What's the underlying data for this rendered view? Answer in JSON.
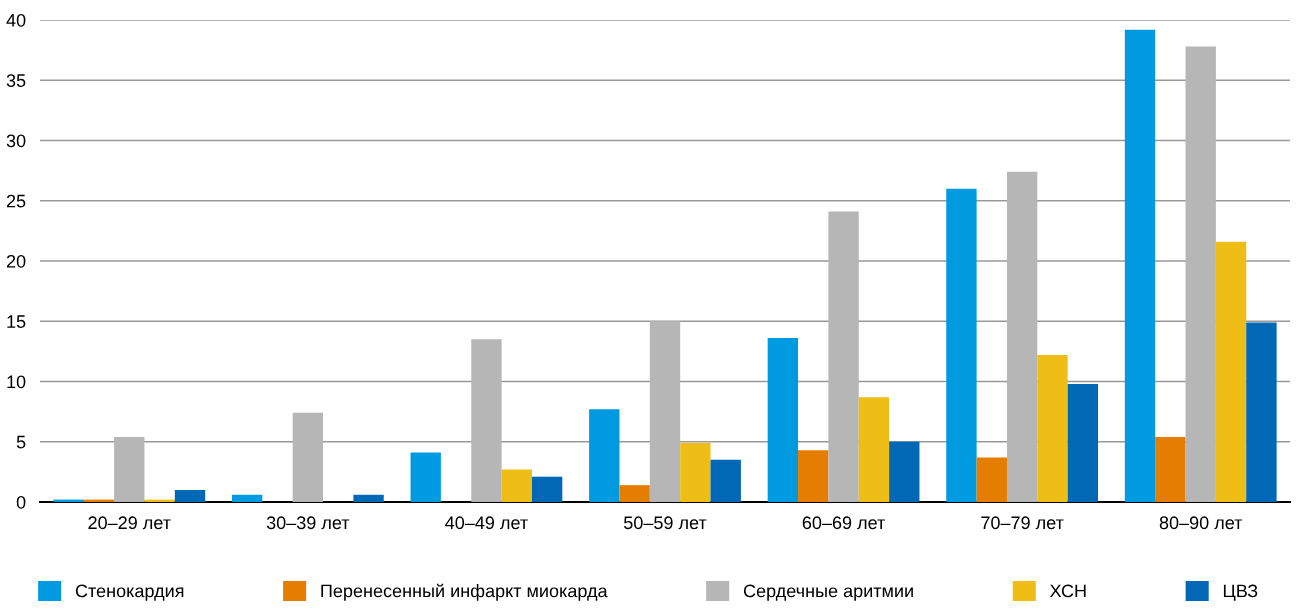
{
  "chart_data": {
    "type": "bar",
    "categories": [
      "20–29 лет",
      "30–39 лет",
      "40–49 лет",
      "50–59 лет",
      "60–69 лет",
      "70–79 лет",
      "80–90 лет"
    ],
    "series": [
      {
        "name": "Стенокардия",
        "color": "#009ae0",
        "values": [
          0.2,
          0.6,
          4.1,
          7.7,
          13.6,
          26.0,
          39.2
        ]
      },
      {
        "name": "Перенесенный инфаркт миокарда",
        "color": "#e57e00",
        "values": [
          0.2,
          0,
          0,
          1.4,
          4.3,
          3.7,
          5.4
        ]
      },
      {
        "name": "Сердечные аритмии",
        "color": "#b6b6b6",
        "values": [
          5.4,
          7.4,
          13.5,
          15.0,
          24.1,
          27.4,
          37.8
        ]
      },
      {
        "name": "ХСН",
        "color": "#efbe16",
        "values": [
          0.2,
          0,
          2.7,
          4.9,
          8.7,
          12.2,
          21.6
        ]
      },
      {
        "name": "ЦВЗ",
        "color": "#0068b4",
        "values": [
          1.0,
          0.6,
          2.1,
          3.5,
          5.0,
          9.8,
          14.9
        ]
      }
    ],
    "ylim": [
      0,
      40
    ],
    "yticks": [
      0,
      5,
      10,
      15,
      20,
      25,
      30,
      35,
      40
    ],
    "grid": "y",
    "legend": "bottom"
  }
}
